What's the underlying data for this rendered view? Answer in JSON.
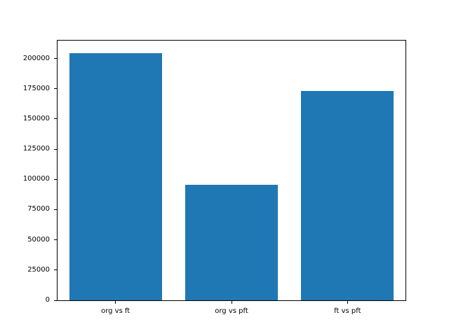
{
  "chart_data": {
    "type": "bar",
    "categories": [
      "org vs ft",
      "org vs pft",
      "ft vs pft"
    ],
    "values": [
      204500,
      95400,
      173000
    ],
    "yticks": [
      0,
      25000,
      50000,
      75000,
      100000,
      125000,
      150000,
      175000,
      200000
    ],
    "ylim": [
      0,
      214800
    ],
    "bar_width_fraction": 0.8,
    "bar_color": "#1f77b4",
    "axes_color": "#000000",
    "background_color": "#ffffff",
    "grid": false,
    "legend": null,
    "title": "",
    "xlabel": "",
    "ylabel": ""
  }
}
